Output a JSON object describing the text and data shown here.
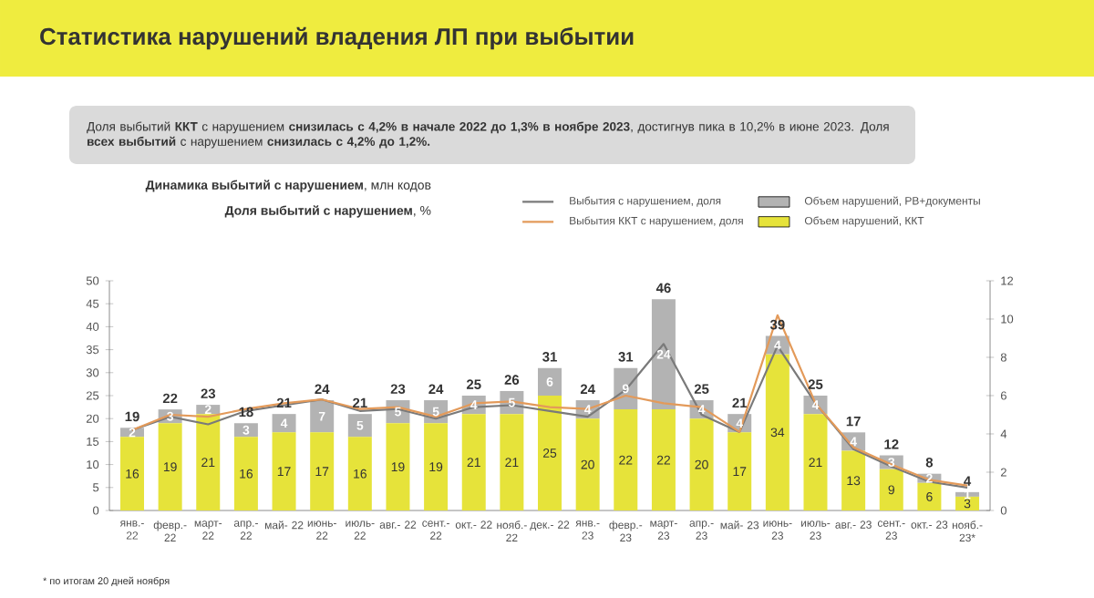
{
  "chart_data": {
    "type": "bar",
    "title": "Статистика нарушений владения ЛП при выбытии",
    "subtitle": "Доля выбытий **ККТ** с нарушением **снизилась с 4,2% в начале 2022 до 1,3% в ноябре 2023**, достигнув пика в 10,2% в июне 2023. Доля **всех выбытий** с нарушением **снизилась с 4,2% до 1,2%.**",
    "annotations": [
      "**Динамика выбытий с нарушением**, млн кодов",
      "**Доля выбытий с нарушением**, %",
      "* по итогам 20 дней ноября"
    ],
    "categories": [
      "янв.- 22",
      "февр.- 22",
      "март- 22",
      "апр.- 22",
      "май- 22",
      "июнь- 22",
      "июль- 22",
      "авг.- 22",
      "сент.- 22",
      "окт.- 22",
      "нояб.- 22",
      "дек.- 22",
      "янв.- 23",
      "февр.- 23",
      "март- 23",
      "апр.- 23",
      "май- 23",
      "июнь- 23",
      "июль- 23",
      "авг.- 23",
      "сент.- 23",
      "окт.- 23",
      "нояб.- 23*"
    ],
    "stacked": true,
    "legend": "top right",
    "ylim": [
      0,
      50
    ],
    "yticks": [
      0,
      5,
      10,
      15,
      20,
      25,
      30,
      35,
      40,
      45,
      50
    ],
    "y2lim": [
      0,
      12
    ],
    "y2ticks": [
      0,
      2,
      4,
      6,
      8,
      10,
      12
    ],
    "totals": [
      "19",
      "22",
      "23",
      "18",
      "21",
      "24",
      "21",
      "23",
      "24",
      "25",
      "26",
      "31",
      "24",
      "31",
      "46",
      "25",
      "21",
      "39",
      "25",
      "17",
      "12",
      "8",
      "4"
    ],
    "series": [
      {
        "name": "Объем нарушений, ККТ",
        "color": "#e6e33a",
        "values": [
          16,
          19,
          21,
          16,
          17,
          17,
          16,
          19,
          19,
          21,
          21,
          25,
          20,
          22,
          22,
          20,
          17,
          34,
          21,
          13,
          9,
          6,
          3
        ],
        "value_labels": [
          "16",
          "19",
          "21",
          "16",
          "17",
          "17",
          "16",
          "19",
          "19",
          "21",
          "21",
          "25",
          "20",
          "22",
          "22",
          "20",
          "17",
          "34",
          "21",
          "13",
          "9",
          "6",
          "3"
        ]
      },
      {
        "name": "Объем нарушений, РВ+документы",
        "color": "#b3b3b3",
        "values": [
          2,
          3,
          2,
          3,
          4,
          7,
          5,
          5,
          5,
          4,
          5,
          6,
          4,
          9,
          24,
          4,
          4,
          4,
          4,
          4,
          3,
          2,
          1
        ],
        "value_labels": [
          "2",
          "3",
          "2",
          "3",
          "4",
          "7",
          "5",
          "5",
          "5",
          "4",
          "5",
          "6",
          "4",
          "9",
          "24",
          "4",
          "4",
          "4",
          "4",
          "4",
          "3",
          "2",
          "1"
        ]
      },
      {
        "name": "Выбытия с нарушением, доля",
        "type": "line",
        "axis": "y2",
        "color": "#7a7a7a",
        "values": [
          4.2,
          4.9,
          4.5,
          5.2,
          5.5,
          5.8,
          5.2,
          5.3,
          4.8,
          5.4,
          5.5,
          5.2,
          4.9,
          6.3,
          8.7,
          5.0,
          4.1,
          8.6,
          5.6,
          3.2,
          2.3,
          1.5,
          1.2
        ]
      },
      {
        "name": "Выбытия ККТ с нарушением, доля",
        "type": "line",
        "axis": "y2",
        "color": "#e39a5a",
        "values": [
          4.2,
          5.0,
          4.9,
          5.3,
          5.6,
          5.8,
          5.3,
          5.4,
          4.9,
          5.6,
          5.7,
          5.4,
          5.3,
          6.0,
          5.6,
          5.4,
          4.1,
          10.2,
          5.6,
          3.3,
          2.4,
          1.6,
          1.3
        ]
      }
    ]
  }
}
